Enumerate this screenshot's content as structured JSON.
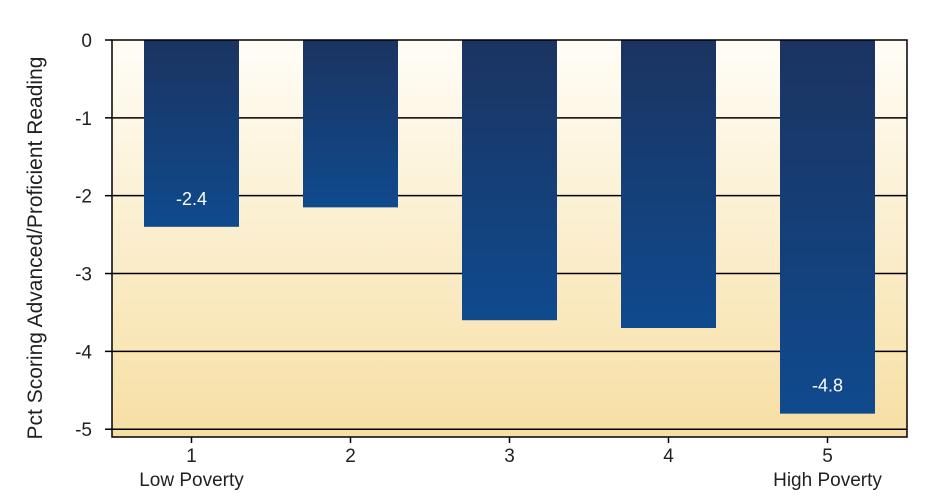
{
  "chart_data": {
    "type": "bar",
    "title": "",
    "xlabel": "",
    "ylabel": "Pct Scoring Advanced/Proficient  Reading",
    "categories": [
      "1",
      "2",
      "3",
      "4",
      "5"
    ],
    "category_sublabels": [
      "Low Poverty",
      "",
      "",
      "",
      "High Poverty"
    ],
    "values": [
      -2.4,
      -2.15,
      -3.6,
      -3.7,
      -4.8
    ],
    "data_labels": [
      "-2.4",
      "",
      "",
      "",
      "-4.8"
    ],
    "yticks": [
      "0",
      "-1",
      "-2",
      "-3",
      "-4",
      "-5"
    ],
    "ylim": [
      -5.1,
      0
    ],
    "grid": true,
    "legend": "none",
    "colors": {
      "bar_top": "#1b3461",
      "bar_bottom": "#0f4a8e",
      "plot_bg_top": "#fffdf7",
      "plot_bg_bottom": "#f7dfa3",
      "grid": "#000000"
    }
  }
}
